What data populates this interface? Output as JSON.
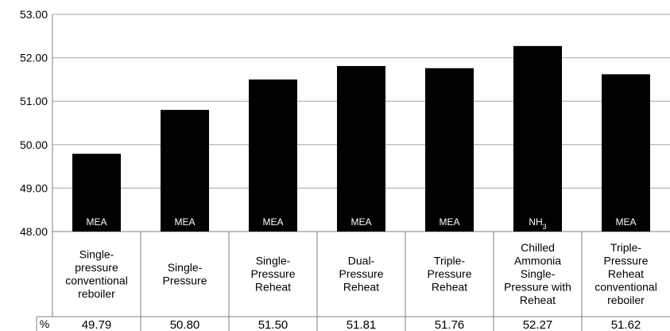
{
  "chart_data": {
    "type": "bar",
    "categories": [
      [
        "Single-",
        "pressure",
        "conventional",
        "reboiler"
      ],
      [
        "Single-",
        "Pressure"
      ],
      [
        "Single-",
        "Pressure",
        "Reheat"
      ],
      [
        "Dual-",
        "Pressure",
        "Reheat"
      ],
      [
        "Triple-",
        "Pressure",
        "Reheat"
      ],
      [
        "Chilled",
        "Ammonia",
        "Single-",
        "Pressure with",
        "Reheat"
      ],
      [
        "Triple-",
        "Pressure",
        "Reheat",
        "conventional",
        "reboiler"
      ]
    ],
    "bar_tags": [
      "MEA",
      "MEA",
      "MEA",
      "MEA",
      "MEA",
      "NH3",
      "MEA"
    ],
    "values": [
      49.79,
      50.8,
      51.5,
      51.81,
      51.76,
      52.27,
      51.62
    ],
    "value_labels": [
      "49.79",
      "50.80",
      "51.50",
      "51.81",
      "51.76",
      "52.27",
      "51.62"
    ],
    "row_label": "%",
    "ylim": [
      48.0,
      53.0
    ],
    "yticks": [
      "48.00",
      "49.00",
      "50.00",
      "51.00",
      "52.00",
      "53.00"
    ],
    "grid": true,
    "colors": {
      "bar": "#000000",
      "grid": "#a6a6a6",
      "axis": "#7f7f7f"
    }
  }
}
